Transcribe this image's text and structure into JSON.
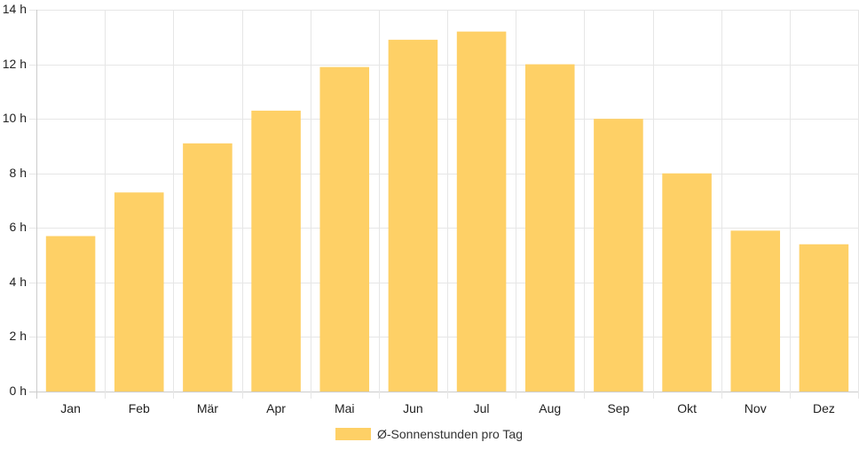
{
  "chart_data": {
    "type": "bar",
    "categories": [
      "Jan",
      "Feb",
      "Mär",
      "Apr",
      "Mai",
      "Jun",
      "Jul",
      "Aug",
      "Sep",
      "Okt",
      "Nov",
      "Dez"
    ],
    "series": [
      {
        "name": "Ø-Sonnenstunden pro Tag",
        "values": [
          5.7,
          7.3,
          9.1,
          10.3,
          11.9,
          12.9,
          13.2,
          12.0,
          10.0,
          8.0,
          5.9,
          5.4
        ],
        "color": "#fed066"
      }
    ],
    "ylim": [
      0,
      14
    ],
    "yticks": [
      0,
      2,
      4,
      6,
      8,
      10,
      12,
      14
    ],
    "y_unit": "h",
    "grid": true,
    "legend_position": "bottom",
    "title": "",
    "xlabel": "",
    "ylabel": ""
  },
  "colors": {
    "grid": "#e6e6e6",
    "axis": "#cccccc",
    "bar": "#fed066"
  }
}
